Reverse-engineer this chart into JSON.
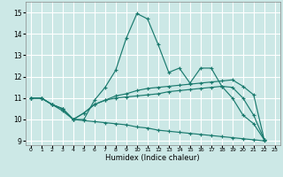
{
  "xlabel": "Humidex (Indice chaleur)",
  "background_color": "#cce8e6",
  "grid_color": "#ffffff",
  "line_color": "#1a7a6e",
  "xlim": [
    -0.5,
    23.5
  ],
  "ylim": [
    8.8,
    15.5
  ],
  "yticks": [
    9,
    10,
    11,
    12,
    13,
    14,
    15
  ],
  "xticks": [
    0,
    1,
    2,
    3,
    4,
    5,
    6,
    7,
    8,
    9,
    10,
    11,
    12,
    13,
    14,
    15,
    16,
    17,
    18,
    19,
    20,
    21,
    22,
    23
  ],
  "series": [
    [
      11.0,
      11.0,
      10.7,
      10.4,
      10.0,
      10.0,
      10.9,
      11.5,
      12.3,
      13.8,
      14.95,
      14.7,
      13.5,
      12.2,
      12.4,
      11.7,
      12.4,
      12.4,
      11.55,
      11.0,
      10.2,
      9.8,
      9.05
    ],
    [
      11.0,
      11.0,
      10.7,
      10.5,
      10.0,
      10.3,
      10.7,
      10.9,
      11.1,
      11.2,
      11.35,
      11.45,
      11.5,
      11.55,
      11.6,
      11.65,
      11.7,
      11.75,
      11.8,
      11.85,
      11.55,
      11.15,
      9.05
    ],
    [
      11.0,
      11.0,
      10.7,
      10.5,
      10.0,
      10.3,
      10.7,
      10.9,
      11.0,
      11.05,
      11.1,
      11.15,
      11.2,
      11.3,
      11.35,
      11.4,
      11.45,
      11.5,
      11.55,
      11.5,
      11.0,
      10.2,
      9.05
    ],
    [
      11.0,
      11.0,
      10.7,
      10.5,
      10.0,
      9.95,
      9.9,
      9.85,
      9.8,
      9.75,
      9.65,
      9.6,
      9.5,
      9.45,
      9.4,
      9.35,
      9.3,
      9.25,
      9.2,
      9.15,
      9.1,
      9.05,
      9.0
    ]
  ],
  "x_data": [
    0,
    1,
    2,
    3,
    4,
    5,
    6,
    7,
    8,
    9,
    10,
    11,
    12,
    13,
    14,
    15,
    16,
    17,
    18,
    19,
    20,
    21,
    22
  ]
}
